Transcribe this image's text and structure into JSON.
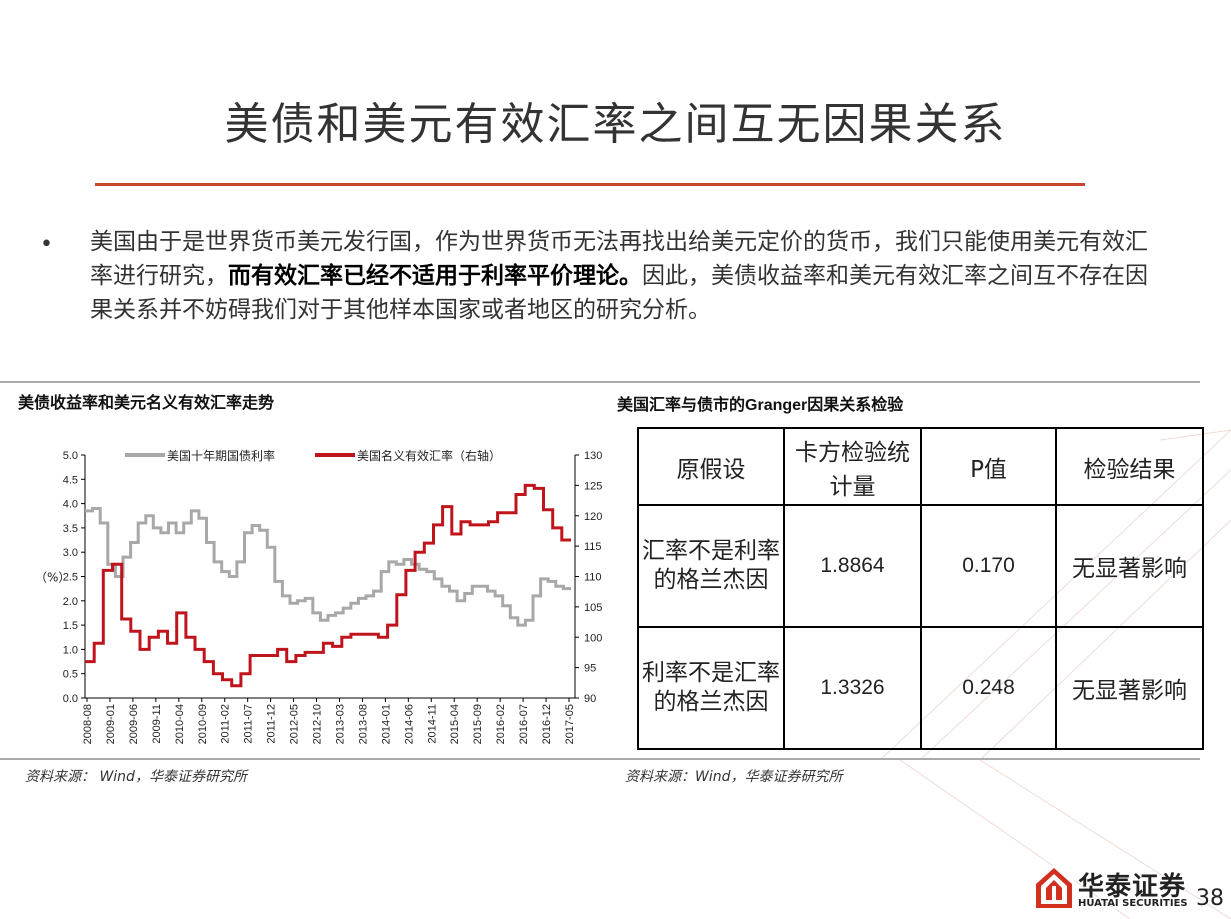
{
  "slide": {
    "title": "美债和美元有效汇率之间互无因果关系",
    "bullet_normal_1": "美国由于是世界货币美元发行国，作为世界货币无法再找出给美元定价的货币，我们只能使用美元有效汇率进行研究，",
    "bullet_bold": "而有效汇率已经不适用于利率平价理论。",
    "bullet_normal_2": "因此，美债收益率和美元有效汇率之间互不存在因果关系并不妨碍我们对于其他样本国家或者地区的研究分析。",
    "page_number": "38"
  },
  "left_panel": {
    "title": "美债收益率和美元名义有效汇率走势",
    "source": "资料来源： Wind，华泰证券研究所"
  },
  "right_panel": {
    "title_pre": "美国汇率与债市的",
    "title_latin": "Granger",
    "title_post": "因果关系检验",
    "source": "资料来源：Wind，华泰证券研究所",
    "table": {
      "headers": [
        "原假设",
        "卡方检验统计量",
        "P值",
        "检验结果"
      ],
      "rows": [
        {
          "hypothesis": "汇率不是利率的格兰杰因",
          "chi2": "1.8864",
          "p": "0.170",
          "result": "无显著影响"
        },
        {
          "hypothesis": "利率不是汇率的格兰杰因",
          "chi2": "1.3326",
          "p": "0.248",
          "result": "无显著影响"
        }
      ]
    }
  },
  "logo": {
    "cn": "华泰证券",
    "en": "HUATAI SECURITIES"
  },
  "colors": {
    "accent": "#c8452a",
    "series_gray": "#a8a8a8",
    "series_red": "#c0141c"
  },
  "chart_data": {
    "type": "line",
    "title": "美债收益率和美元名义有效汇率走势",
    "ylabel": "（%）",
    "ylim_left": [
      0,
      5
    ],
    "yticks_left": [
      "5.0",
      "4.5",
      "4.0",
      "3.5",
      "3.0",
      "2.5",
      "2.0",
      "1.5",
      "1.0",
      "0.5",
      "0.0"
    ],
    "ylim_right": [
      90,
      130
    ],
    "yticks_right": [
      "130",
      "125",
      "120",
      "115",
      "110",
      "105",
      "100",
      "95",
      "90"
    ],
    "x_ticks": [
      "2008-08",
      "2009-01",
      "2009-06",
      "2009-11",
      "2010-04",
      "2010-09",
      "2011-02",
      "2011-07",
      "2011-12",
      "2012-05",
      "2012-10",
      "2013-03",
      "2013-08",
      "2014-01",
      "2014-06",
      "2014-11",
      "2015-04",
      "2015-09",
      "2016-02",
      "2016-07",
      "2016-12",
      "2017-05"
    ],
    "legend_position": "top",
    "series": [
      {
        "name": "美国十年期国债利率",
        "axis": "left",
        "values": [
          3.85,
          3.9,
          3.6,
          2.75,
          2.5,
          2.9,
          3.2,
          3.6,
          3.75,
          3.5,
          3.4,
          3.6,
          3.4,
          3.6,
          3.85,
          3.7,
          3.2,
          2.8,
          2.6,
          2.5,
          2.8,
          3.4,
          3.55,
          3.45,
          3.1,
          2.4,
          2.1,
          1.95,
          2.0,
          2.05,
          1.75,
          1.6,
          1.7,
          1.75,
          1.85,
          1.95,
          2.05,
          2.1,
          2.2,
          2.6,
          2.8,
          2.75,
          2.85,
          2.75,
          2.65,
          2.6,
          2.45,
          2.3,
          2.2,
          2.0,
          2.15,
          2.3,
          2.3,
          2.2,
          2.1,
          1.9,
          1.65,
          1.5,
          1.6,
          2.1,
          2.45,
          2.4,
          2.3,
          2.25
        ]
      },
      {
        "name": "美国名义有效汇率（右轴）",
        "axis": "right",
        "values": [
          96,
          99,
          111,
          112,
          103,
          101,
          98,
          100,
          101,
          99,
          104,
          100,
          98,
          96,
          94,
          93,
          92,
          94,
          97,
          97,
          97,
          98,
          96,
          97,
          97.5,
          97.5,
          99,
          98.5,
          100,
          100.5,
          100.5,
          100.5,
          100,
          102,
          107,
          111,
          114,
          115.5,
          118.5,
          121.5,
          117,
          119,
          118.5,
          118.5,
          119,
          120.5,
          120.5,
          123.5,
          125,
          124.5,
          121,
          118,
          116
        ]
      }
    ]
  }
}
